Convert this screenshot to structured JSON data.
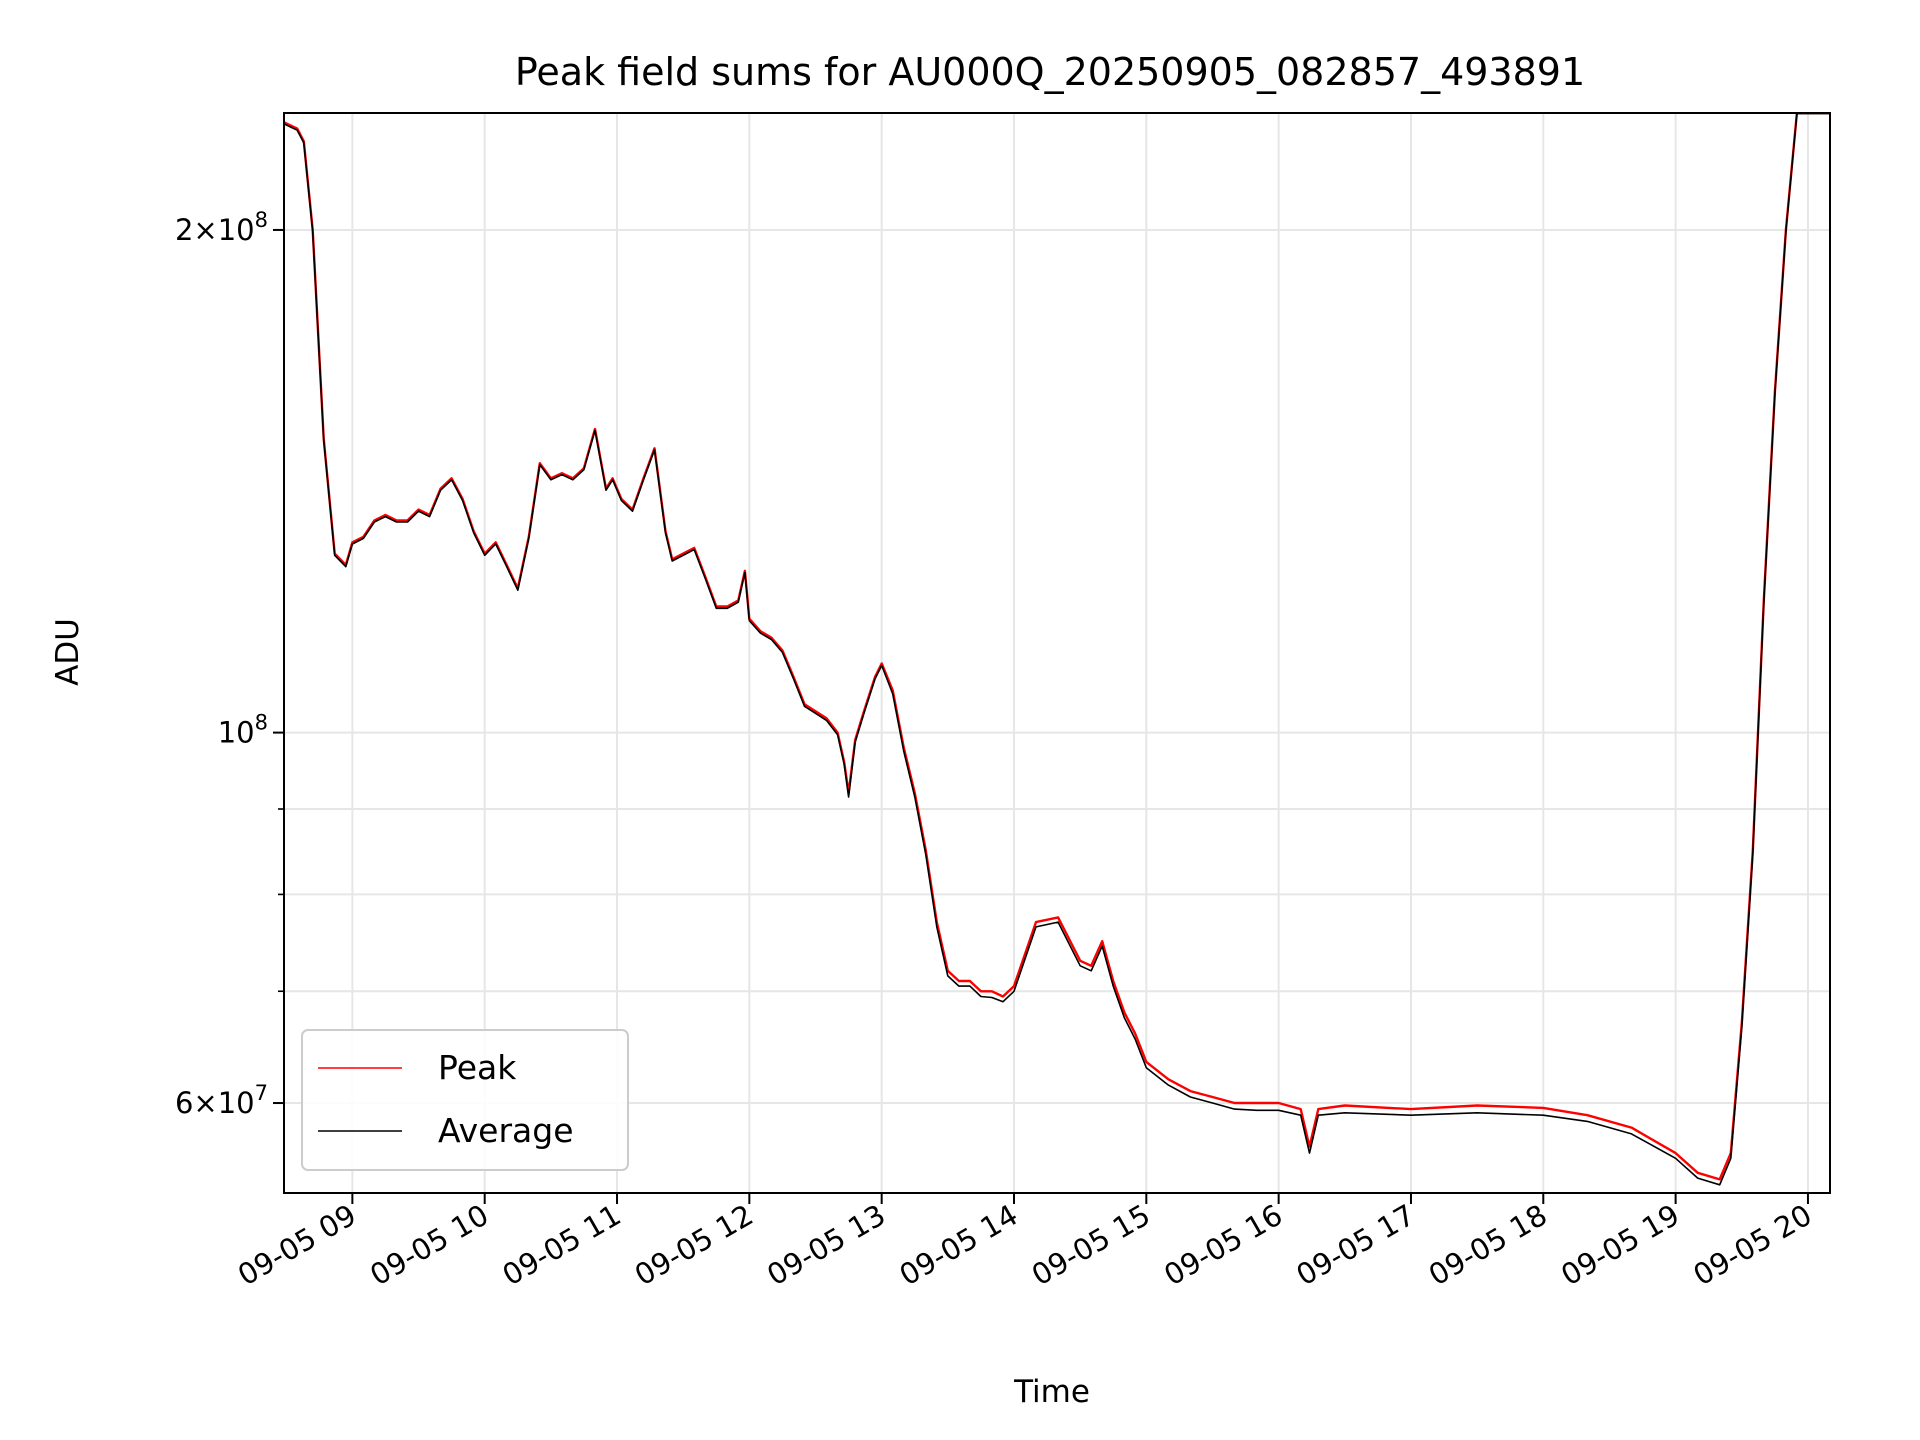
{
  "chart_data": {
    "type": "line",
    "title": "Peak field sums for AU000Q_20250905_082857_493891",
    "xlabel": "Time",
    "ylabel": "ADU",
    "yscale": "log",
    "ylim": [
      53000000,
      235000000
    ],
    "xlim": [
      "2025-09-05 08:29",
      "2025-09-05 20:10"
    ],
    "grid": true,
    "legend_position": "lower-left",
    "x_ticks": [
      "09-05 09",
      "09-05 10",
      "09-05 11",
      "09-05 12",
      "09-05 13",
      "09-05 14",
      "09-05 15",
      "09-05 16",
      "09-05 17",
      "09-05 18",
      "09-05 19",
      "09-05 20"
    ],
    "y_tick_labels": [
      {
        "value": 200000000,
        "base": "2",
        "exp": "8",
        "times": true
      },
      {
        "value": 100000000,
        "base": "10",
        "exp": "8",
        "times": false
      },
      {
        "value": 60000000,
        "base": "6",
        "exp": "7",
        "times": true
      }
    ],
    "y_minor_ticks": [
      70000000,
      80000000,
      90000000
    ],
    "x": [
      "2025-09-05 08:29",
      "2025-09-05 08:35",
      "2025-09-05 08:38",
      "2025-09-05 08:42",
      "2025-09-05 08:47",
      "2025-09-05 08:52",
      "2025-09-05 08:57",
      "2025-09-05 09:00",
      "2025-09-05 09:05",
      "2025-09-05 09:10",
      "2025-09-05 09:15",
      "2025-09-05 09:20",
      "2025-09-05 09:25",
      "2025-09-05 09:30",
      "2025-09-05 09:35",
      "2025-09-05 09:40",
      "2025-09-05 09:45",
      "2025-09-05 09:50",
      "2025-09-05 09:55",
      "2025-09-05 10:00",
      "2025-09-05 10:05",
      "2025-09-05 10:10",
      "2025-09-05 10:15",
      "2025-09-05 10:20",
      "2025-09-05 10:25",
      "2025-09-05 10:30",
      "2025-09-05 10:35",
      "2025-09-05 10:40",
      "2025-09-05 10:45",
      "2025-09-05 10:50",
      "2025-09-05 10:55",
      "2025-09-05 10:58",
      "2025-09-05 11:02",
      "2025-09-05 11:07",
      "2025-09-05 11:12",
      "2025-09-05 11:17",
      "2025-09-05 11:22",
      "2025-09-05 11:25",
      "2025-09-05 11:30",
      "2025-09-05 11:35",
      "2025-09-05 11:40",
      "2025-09-05 11:45",
      "2025-09-05 11:50",
      "2025-09-05 11:55",
      "2025-09-05 11:58",
      "2025-09-05 12:00",
      "2025-09-05 12:05",
      "2025-09-05 12:10",
      "2025-09-05 12:15",
      "2025-09-05 12:20",
      "2025-09-05 12:25",
      "2025-09-05 12:30",
      "2025-09-05 12:35",
      "2025-09-05 12:40",
      "2025-09-05 12:43",
      "2025-09-05 12:45",
      "2025-09-05 12:48",
      "2025-09-05 12:52",
      "2025-09-05 12:57",
      "2025-09-05 13:00",
      "2025-09-05 13:05",
      "2025-09-05 13:10",
      "2025-09-05 13:15",
      "2025-09-05 13:20",
      "2025-09-05 13:25",
      "2025-09-05 13:30",
      "2025-09-05 13:35",
      "2025-09-05 13:40",
      "2025-09-05 13:45",
      "2025-09-05 13:50",
      "2025-09-05 13:55",
      "2025-09-05 14:00",
      "2025-09-05 14:10",
      "2025-09-05 14:20",
      "2025-09-05 14:30",
      "2025-09-05 14:35",
      "2025-09-05 14:40",
      "2025-09-05 14:45",
      "2025-09-05 14:50",
      "2025-09-05 14:55",
      "2025-09-05 15:00",
      "2025-09-05 15:10",
      "2025-09-05 15:20",
      "2025-09-05 15:30",
      "2025-09-05 15:40",
      "2025-09-05 15:50",
      "2025-09-05 16:00",
      "2025-09-05 16:10",
      "2025-09-05 16:14",
      "2025-09-05 16:18",
      "2025-09-05 16:30",
      "2025-09-05 17:00",
      "2025-09-05 17:30",
      "2025-09-05 18:00",
      "2025-09-05 18:20",
      "2025-09-05 18:40",
      "2025-09-05 19:00",
      "2025-09-05 19:10",
      "2025-09-05 19:20",
      "2025-09-05 19:25",
      "2025-09-05 19:30",
      "2025-09-05 19:35",
      "2025-09-05 19:40",
      "2025-09-05 19:45",
      "2025-09-05 19:50",
      "2025-09-05 19:55",
      "2025-09-05 20:00",
      "2025-09-05 20:10"
    ],
    "series": [
      {
        "name": "Peak",
        "color": "#ff0000",
        "values": [
          232000000,
          230000000,
          226000000,
          200000000,
          150000000,
          128000000,
          126000000,
          130000000,
          131000000,
          134000000,
          135000000,
          134000000,
          134000000,
          136000000,
          135000000,
          140000000,
          142000000,
          138000000,
          132000000,
          128000000,
          130000000,
          126000000,
          122000000,
          131000000,
          145000000,
          142000000,
          143000000,
          142000000,
          144000000,
          152000000,
          140000000,
          142000000,
          138000000,
          136000000,
          142000000,
          148000000,
          132000000,
          127000000,
          128000000,
          129000000,
          124000000,
          119000000,
          119000000,
          120000000,
          125000000,
          117000000,
          115000000,
          114000000,
          112000000,
          108000000,
          104000000,
          103000000,
          102000000,
          100000000,
          96000000,
          92000000,
          99000000,
          103000000,
          108000000,
          110000000,
          106000000,
          98000000,
          92000000,
          85000000,
          77000000,
          72000000,
          71000000,
          71000000,
          70000000,
          70000000,
          69500000,
          70500000,
          77000000,
          77500000,
          73000000,
          72500000,
          75000000,
          71000000,
          68000000,
          66000000,
          63500000,
          62000000,
          61000000,
          60500000,
          60000000,
          60000000,
          60000000,
          59500000,
          56500000,
          59500000,
          59800000,
          59500000,
          59800000,
          59600000,
          59000000,
          58000000,
          56000000,
          54500000,
          54000000,
          56000000,
          67000000,
          85000000,
          120000000,
          160000000,
          200000000,
          235000000,
          235000000,
          235000000
        ]
      },
      {
        "name": "Average",
        "color": "#000000",
        "values": [
          231500000,
          229500000,
          225500000,
          199500000,
          149700000,
          127700000,
          125700000,
          129700000,
          130700000,
          133700000,
          134700000,
          133700000,
          133700000,
          135700000,
          134700000,
          139700000,
          141700000,
          137700000,
          131700000,
          127700000,
          129700000,
          125700000,
          121700000,
          130700000,
          144700000,
          141700000,
          142700000,
          141700000,
          143700000,
          151700000,
          139700000,
          141700000,
          137700000,
          135700000,
          141700000,
          147700000,
          131700000,
          126700000,
          127700000,
          128700000,
          123700000,
          118700000,
          118700000,
          119700000,
          124700000,
          116700000,
          114700000,
          113700000,
          111700000,
          107700000,
          103700000,
          102700000,
          101700000,
          99700000,
          95700000,
          91500000,
          98700000,
          102700000,
          107700000,
          109700000,
          105500000,
          97500000,
          91500000,
          84500000,
          76500000,
          71500000,
          70500000,
          70500000,
          69500000,
          69400000,
          69000000,
          70000000,
          76500000,
          77000000,
          72500000,
          72000000,
          74500000,
          70500000,
          67500000,
          65500000,
          63000000,
          61500000,
          60500000,
          60000000,
          59500000,
          59400000,
          59400000,
          59000000,
          56000000,
          59000000,
          59200000,
          59000000,
          59200000,
          59000000,
          58500000,
          57500000,
          55600000,
          54100000,
          53600000,
          55600000,
          66600000,
          84600000,
          119600000,
          159600000,
          199600000,
          234800000,
          234800000,
          234800000
        ]
      }
    ]
  }
}
